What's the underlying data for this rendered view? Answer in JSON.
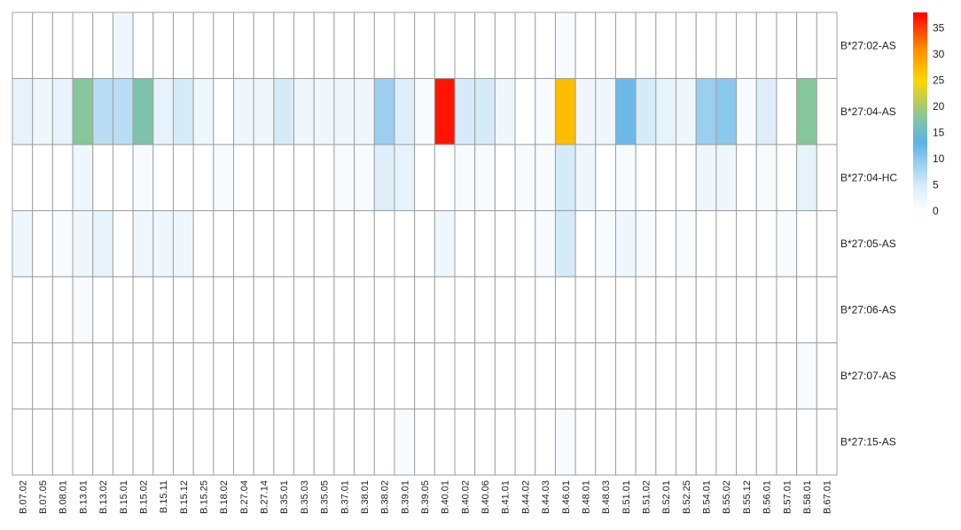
{
  "chart_data": {
    "type": "heatmap",
    "title": "",
    "xlabel": "",
    "ylabel": "",
    "columns": [
      "B.07.02",
      "B.07.05",
      "B.08.01",
      "B.13.01",
      "B.13.02",
      "B.15.01",
      "B.15.02",
      "B.15.11",
      "B.15.12",
      "B.15.25",
      "B.18.02",
      "B.27.04",
      "B.27.14",
      "B.35.01",
      "B.35.03",
      "B.35.05",
      "B.37.01",
      "B.38.01",
      "B.38.02",
      "B.39.01",
      "B.39.05",
      "B.40.01",
      "B.40.02",
      "B.40.06",
      "B.41.01",
      "B.44.02",
      "B.44.03",
      "B.46.01",
      "B.48.01",
      "B.48.03",
      "B.51.01",
      "B.51.02",
      "B.52.01",
      "B.52.25",
      "B.54.01",
      "B.55.02",
      "B.55.12",
      "B.56.01",
      "B.57.01",
      "B.58.01",
      "B.67.01"
    ],
    "rows": [
      "B*27:02-AS",
      "B*27:04-AS",
      "B*27:04-HC",
      "B*27:05-AS",
      "B*27:06-AS",
      "B*27:07-AS",
      "B*27:15-AS"
    ],
    "values": [
      [
        0,
        0,
        0,
        0,
        0,
        2,
        0,
        0,
        0,
        0,
        0,
        0,
        0,
        0,
        0,
        0,
        0,
        0,
        0,
        0,
        0,
        0,
        0,
        0,
        0,
        0,
        0,
        1,
        0,
        0,
        0,
        0,
        0,
        0,
        0,
        0,
        0,
        0,
        0,
        0,
        0
      ],
      [
        3,
        2,
        3,
        18,
        7,
        7,
        17,
        3,
        5,
        2,
        0,
        2,
        2,
        5,
        2,
        2,
        2,
        2,
        9,
        4,
        1,
        37,
        5,
        5,
        2,
        0,
        1,
        27,
        2,
        2,
        12,
        5,
        3,
        2,
        9,
        10,
        1,
        4,
        0,
        18,
        0
      ],
      [
        0,
        0,
        0,
        2,
        0,
        0,
        1,
        0,
        0,
        0,
        1,
        0,
        0,
        0,
        0,
        0,
        1,
        1,
        4,
        3,
        0,
        0,
        1,
        1,
        0,
        1,
        1,
        5,
        2,
        0,
        1,
        0,
        0,
        0,
        2,
        2,
        0,
        1,
        0,
        3,
        0
      ],
      [
        2,
        0,
        1,
        2,
        3,
        0,
        2,
        2,
        2,
        0,
        0,
        0,
        0,
        0,
        0,
        0,
        0,
        0,
        0,
        0,
        0,
        2,
        0,
        0,
        0,
        0,
        1,
        5,
        0,
        1,
        2,
        1,
        0,
        1,
        0,
        0,
        0,
        0,
        1,
        0,
        0
      ],
      [
        0,
        0,
        0,
        1,
        0,
        0,
        0,
        0,
        0,
        0,
        0,
        0,
        0,
        0,
        0,
        0,
        0,
        0,
        0,
        0,
        0,
        0,
        0,
        0,
        0,
        0,
        0,
        0,
        0,
        0,
        0,
        0,
        0,
        0,
        0,
        0,
        0,
        0,
        0,
        0,
        0
      ],
      [
        0,
        0,
        0,
        0,
        0,
        0,
        0,
        0,
        0,
        0,
        0,
        0,
        0,
        0,
        0,
        0,
        0,
        0,
        0,
        0,
        0,
        0,
        0,
        0,
        0,
        0,
        0,
        0,
        0,
        0,
        0,
        0,
        0,
        0,
        0,
        0,
        0,
        0,
        0,
        1,
        0
      ],
      [
        0,
        0,
        0,
        0,
        0,
        0,
        0,
        0,
        0,
        0,
        0,
        0,
        0,
        0,
        0,
        0,
        0,
        0,
        0,
        1,
        0,
        0,
        0,
        0,
        0,
        0,
        0,
        1,
        0,
        0,
        0,
        0,
        0,
        0,
        0,
        0,
        0,
        0,
        0,
        0,
        0
      ]
    ],
    "color_scale": {
      "min": 0,
      "max": 38,
      "ticks": [
        0,
        5,
        10,
        15,
        20,
        25,
        30,
        35
      ],
      "stops": [
        {
          "value": 0,
          "color": "#ffffff"
        },
        {
          "value": 5,
          "color": "#d6ebf8"
        },
        {
          "value": 13,
          "color": "#5db3e6"
        },
        {
          "value": 18,
          "color": "#85c79a"
        },
        {
          "value": 25,
          "color": "#ffd500"
        },
        {
          "value": 31,
          "color": "#ff8c00"
        },
        {
          "value": 38,
          "color": "#ff0000"
        }
      ]
    },
    "grid": true,
    "legend": "right"
  }
}
